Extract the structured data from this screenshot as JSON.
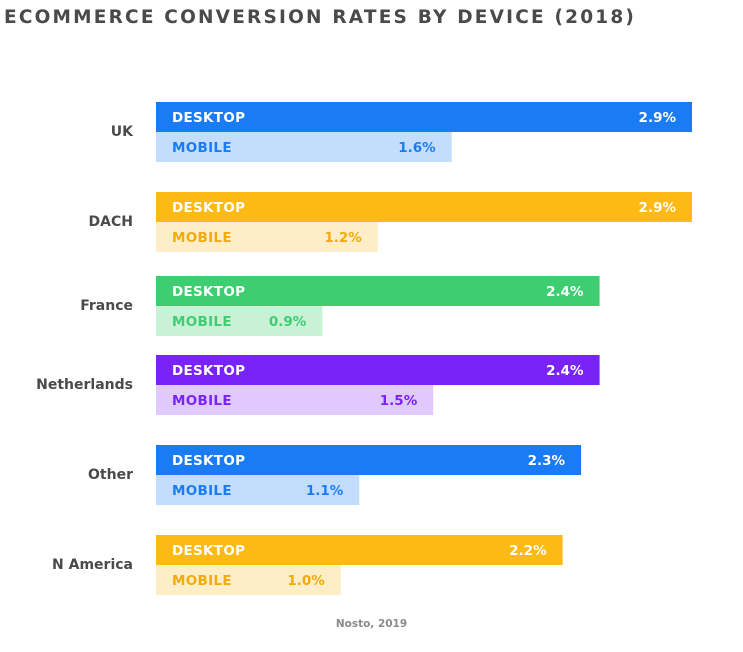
{
  "chart_data": {
    "type": "bar",
    "orientation": "horizontal",
    "title": "ECOMMERCE CONVERSION RATES BY DEVICE (2018)",
    "source": "Nosto, 2019",
    "categories": [
      "UK",
      "DACH",
      "France",
      "Netherlands",
      "Other",
      "N America"
    ],
    "series": [
      {
        "name": "DESKTOP",
        "values": [
          2.9,
          2.9,
          2.4,
          2.4,
          2.3,
          2.2
        ],
        "value_labels": [
          "2.9%",
          "2.9%",
          "2.4%",
          "2.4%",
          "2.3%",
          "2.2%"
        ]
      },
      {
        "name": "MOBILE",
        "values": [
          1.6,
          1.2,
          0.9,
          1.5,
          1.1,
          1.0
        ],
        "value_labels": [
          "1.6%",
          "1.2%",
          "0.9%",
          "1.5%",
          "1.1%",
          "1.0%"
        ]
      }
    ],
    "xlim": [
      0,
      2.9
    ],
    "unit": "%",
    "grid": false,
    "legend": "none",
    "colors": {
      "desktop": [
        "#1a7cf5",
        "#fdb914",
        "#3ecd70",
        "#7a23f8",
        "#1a7cf5",
        "#fdb914"
      ],
      "mobile": [
        "#c3defd",
        "#fdeec8",
        "#c8f1d6",
        "#e0c9fd",
        "#c3defd",
        "#fdeec8"
      ],
      "mobile_text": [
        "#1a7cf5",
        "#f2ab0a",
        "#3ecd70",
        "#7a23f8",
        "#1a7cf5",
        "#f2ab0a"
      ],
      "desktop_text": "#ffffff",
      "category_text": "#4a4a4a",
      "title_text": "#4a4a4a"
    }
  }
}
